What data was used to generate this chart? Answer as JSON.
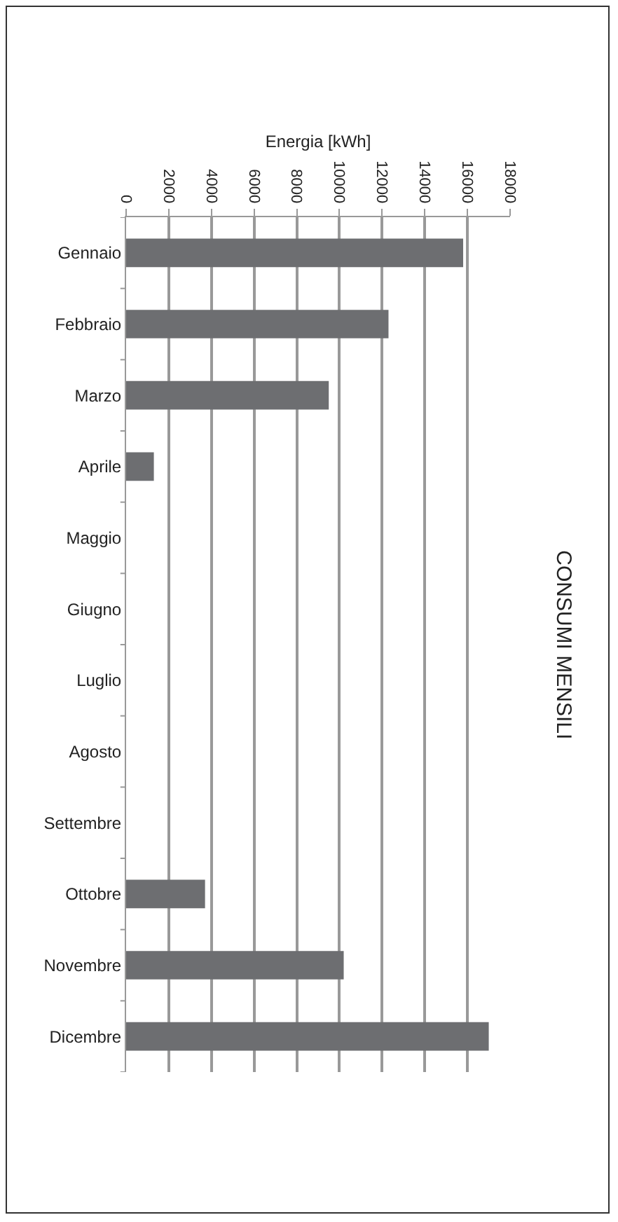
{
  "chart_data": {
    "type": "bar",
    "orientation": "horizontal",
    "title": "CONSUMI MENSILI",
    "xlabel": "Energia [kWh]",
    "categories": [
      "Gennaio",
      "Febbraio",
      "Marzo",
      "Aprile",
      "Maggio",
      "Giugno",
      "Luglio",
      "Agosto",
      "Settembre",
      "Ottobre",
      "Novembre",
      "Dicembre"
    ],
    "values": [
      15800,
      12300,
      9500,
      1300,
      0,
      0,
      0,
      0,
      0,
      3700,
      10200,
      17000
    ],
    "color": "#6d6e71",
    "xlim": [
      0,
      18000
    ],
    "xticks": [
      0,
      2000,
      4000,
      6000,
      8000,
      10000,
      12000,
      14000,
      16000,
      18000
    ],
    "grid": "x"
  }
}
